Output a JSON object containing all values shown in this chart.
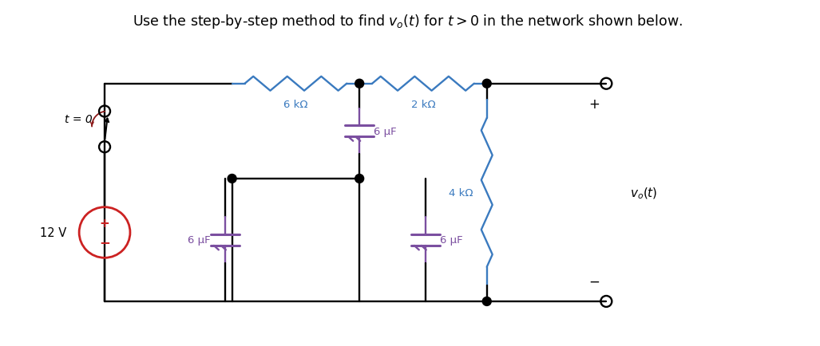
{
  "title": "Use the step-by-step method to find $v_o(t)$ for $t > 0$ in the network shown below.",
  "title_fontsize": 12.5,
  "bg_color": "#ffffff",
  "line_color": "#000000",
  "res_color_blue": "#3a7abf",
  "res_color_purple": "#7b4fa0",
  "cap_color": "#7b4fa0",
  "source_color": "#cc2222",
  "switch_arrow_color": "#8b1a1a",
  "label_6kohm": "6 kΩ",
  "label_2kohm": "2 kΩ",
  "label_4kohm": "4 kΩ",
  "label_6uF_top": "6 μF",
  "label_6uF_bl": "6 μF",
  "label_6uF_br": "6 μF",
  "label_12V": "12 V",
  "label_t0": "t = 0",
  "label_vo": "$v_o(t)$",
  "label_plus": "+",
  "label_minus": "−"
}
